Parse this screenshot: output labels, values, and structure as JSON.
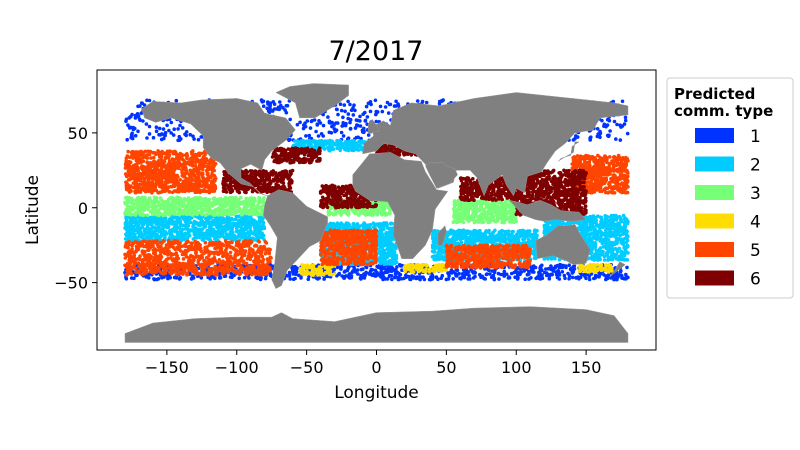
{
  "chart_data": {
    "type": "scatter",
    "title": "7/2017",
    "xlabel": "Longitude",
    "ylabel": "Latitude",
    "xlim": [
      -200,
      200
    ],
    "ylim": [
      -95,
      92
    ],
    "x_ticks": [
      -150,
      -100,
      -50,
      0,
      50,
      100,
      150
    ],
    "x_tick_labels": [
      "−150",
      "−100",
      "−50",
      "0",
      "50",
      "100",
      "150"
    ],
    "y_ticks": [
      -50,
      0,
      50
    ],
    "y_tick_labels": [
      "−50",
      "0",
      "50"
    ],
    "grid": false,
    "legend": {
      "title_line1": "Predicted",
      "title_line2": "comm. type",
      "placement": "outside-right",
      "entries": [
        {
          "label": "1",
          "color": "#0033ff"
        },
        {
          "label": "2",
          "color": "#00ccff"
        },
        {
          "label": "3",
          "color": "#77ff77"
        },
        {
          "label": "4",
          "color": "#ffdd00"
        },
        {
          "label": "5",
          "color": "#ff4400"
        },
        {
          "label": "6",
          "color": "#7f0000"
        }
      ]
    },
    "land_color": "#808080",
    "series": [
      {
        "name": "1",
        "color": "#0033ff",
        "regions": [
          {
            "lon": [
              -180,
              180
            ],
            "lat": [
              45,
              72
            ]
          },
          {
            "lon": [
              -180,
              180
            ],
            "lat": [
              -48,
              -38
            ]
          }
        ]
      },
      {
        "name": "2",
        "color": "#00ccff",
        "regions": [
          {
            "lon": [
              -180,
              -80
            ],
            "lat": [
              -22,
              -5
            ]
          },
          {
            "lon": [
              -40,
              15
            ],
            "lat": [
              -38,
              -10
            ]
          },
          {
            "lon": [
              40,
              115
            ],
            "lat": [
              -35,
              -15
            ]
          },
          {
            "lon": [
              120,
              180
            ],
            "lat": [
              -35,
              -5
            ]
          },
          {
            "lon": [
              -60,
              20
            ],
            "lat": [
              38,
              45
            ]
          }
        ]
      },
      {
        "name": "3",
        "color": "#77ff77",
        "regions": [
          {
            "lon": [
              -180,
              -80
            ],
            "lat": [
              -5,
              7
            ]
          },
          {
            "lon": [
              -35,
              10
            ],
            "lat": [
              -5,
              5
            ]
          },
          {
            "lon": [
              55,
              100
            ],
            "lat": [
              -10,
              5
            ]
          }
        ]
      },
      {
        "name": "4",
        "color": "#ffdd00",
        "regions": [
          {
            "lon": [
              -55,
              -30
            ],
            "lat": [
              -45,
              -38
            ]
          },
          {
            "lon": [
              20,
              50
            ],
            "lat": [
              -43,
              -38
            ]
          },
          {
            "lon": [
              145,
              170
            ],
            "lat": [
              -43,
              -38
            ]
          }
        ]
      },
      {
        "name": "5",
        "color": "#ff4400",
        "regions": [
          {
            "lon": [
              -180,
              -115
            ],
            "lat": [
              10,
              38
            ]
          },
          {
            "lon": [
              -180,
              -75
            ],
            "lat": [
              -45,
              -22
            ]
          },
          {
            "lon": [
              -40,
              0
            ],
            "lat": [
              -38,
              -15
            ]
          },
          {
            "lon": [
              50,
              110
            ],
            "lat": [
              -40,
              -25
            ]
          },
          {
            "lon": [
              140,
              180
            ],
            "lat": [
              10,
              35
            ]
          }
        ]
      },
      {
        "name": "6",
        "color": "#7f0000",
        "regions": [
          {
            "lon": [
              -110,
              -60
            ],
            "lat": [
              10,
              25
            ]
          },
          {
            "lon": [
              -40,
              0
            ],
            "lat": [
              0,
              15
            ]
          },
          {
            "lon": [
              60,
              100
            ],
            "lat": [
              5,
              20
            ]
          },
          {
            "lon": [
              100,
              150
            ],
            "lat": [
              -5,
              25
            ]
          },
          {
            "lon": [
              -75,
              -40
            ],
            "lat": [
              30,
              40
            ]
          },
          {
            "lon": [
              0,
              30
            ],
            "lat": [
              35,
              42
            ]
          }
        ]
      }
    ]
  }
}
